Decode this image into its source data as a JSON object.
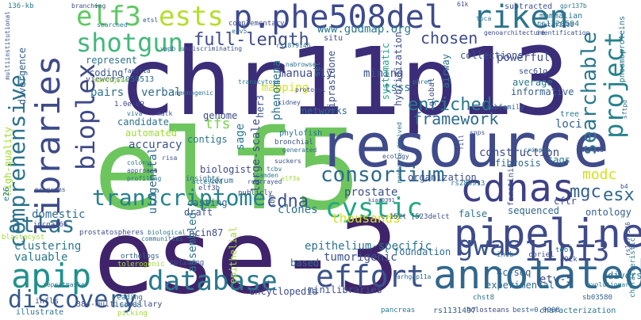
{
  "words": {
    "chr11p13": "chr11p13",
    "elf5": "elf5",
    "ese3": "ese-3",
    "resource": "resource",
    "phe508del": "p.phe508del",
    "libraries": "libraries",
    "pipeline": "pipeline",
    "annotated": "annotated",
    "cdnas": "cdnas",
    "bioplex": "bioplex",
    "riken": "riken",
    "comprehensive": "comprehensive",
    "elf3": "elf3",
    "ests": "ests",
    "shotgun": "shotgun",
    "database": "database",
    "effort": "effort",
    "transcriptome": "transcriptome",
    "cystic": "cystic",
    "consortium": "consortium",
    "project": "project",
    "searchable": "searchable",
    "enriched": "enriched",
    "gwas": "gwas",
    "p11p13": "11p13",
    "apip": "apip",
    "discovery": "discovery",
    "atlas": "atlas",
    "full_length": "full-length",
    "gudmap": "www.gudmap.org",
    "chosen": "chosen",
    "framework": "framework",
    "cdna": "cdna",
    "esx": "esx",
    "mgc": "mgc",
    "modc": "modc",
    "epithelium_specific": "epithelium-specific",
    "tumorigenic": "tumorigenic",
    "etv5": "etv-5",
    "c4seq": "4c-seq",
    "encyclopedia": "encyclopedia",
    "foundation": "foundation",
    "clustering": "clustering",
    "thousands": "thousands",
    "prostate": "prostate",
    "construction": "construction",
    "sage": "sage",
    "large_scale": "large-scale",
    "tfs": "tfs",
    "accuracy": "accuracy",
    "candidate": "candidate",
    "automated": "automated",
    "biologist": "biologist",
    "mapping": "mapping",
    "verbal": "verbal",
    "pairs": "pairs",
    "manually": "manually",
    "mining": "mining",
    "tsss": "tsss",
    "average": "average",
    "informative": "informative",
    "powerful": "powerful",
    "ontology": "ontology",
    "diverse": "diverse",
    "sequenced": "sequenced",
    "false": "false",
    "cftr": "cftr",
    "domestic": "domestic",
    "valuable": "valuable",
    "casting": "casting",
    "draft": "draft",
    "assembled": "assembled",
    "ncin87": "ncin87",
    "clones": "clones",
    "experimental": "experimental",
    "based": "based",
    "minilibraries": "minilibraries",
    "illustrate": "illustrate",
    "infls": "infls",
    "multicapillary": "384-multicapillary",
    "epithelial": "epithelial",
    "rs1131497": "rs1131497",
    "characterization": "characterization",
    "holosteans": "holosteans",
    "pancreas": "pancreas",
    "sb03580": "sb03580",
    "genome": "genome",
    "contigs": "contigs",
    "loci": "loci",
    "tags": "tags",
    "airway": "airway",
    "global": "global",
    "set": "set",
    "systematic": "systematic",
    "hybridization": "hybridization",
    "ziprasidone": "ziprasidone",
    "her3": "her3",
    "networks": "networks",
    "collections": "collections",
    "represent": "represent",
    "coding": "coding",
    "rs1056513": "rs1056513",
    "viewed": "viewed",
    "divergence": "divergence",
    "high_quality": "high-quality",
    "e26": "e26",
    "rs1120594": "rs1120594",
    "subtracted": "subtracted",
    "mammalian": "mammalian",
    "situ": "situ",
    "fibrosis": "fibrosis",
    "urogenital": "urogenital",
    "tree": "tree",
    "sec61g": "sec61g",
    "pneumoproteins": "pneumoproteins",
    "phylofish": "phylofish",
    "phenomena": "phenomena",
    "organization": "organization",
    "rs286913": "rs286913",
    "characteristic": "characteristic",
    "kb": "136-kb",
    "branching": "branching",
    "complementary": "complementary",
    "corum": "corum",
    "rs1070546": "rs1070546",
    "best": "best=0.0008",
    "elf3b": "elf3b",
    "chst8": "chst8",
    "c15": "c.152t [523delct",
    "rs1879146": "rs1879146",
    "atlas_small": "sb0",
    "tool": "tool",
    "coriel": "coriel",
    "inib": "inib",
    "publicly": "publicly",
    "insights": "insights",
    "bronchial": "bronchial",
    "prostatospheres": "prostatospheres",
    "biological": "biological",
    "communities": "communities",
    "orthologs": "orthologs",
    "tolerogenic": "tolerogenic",
    "splicing": "splicing",
    "reading": "reading",
    "picking": "picking",
    "e26_7": "7.6e-08",
    "e09": "1.0e-09",
    "blastocyst": "blastocyst",
    "incgat66": "incgat66",
    "subfamily": "subfamily",
    "identification": "identification",
    "gataf1a06": "gataf1a06",
    "gpr137b": "gpr137b",
    "genoarchitecture": "genoarchitecture",
    "tbca": "tbca",
    "ecology": "ecology",
    "sftpd": "sftpd",
    "evolutionary": "evolutionary",
    "series": "series",
    "crispra": "crispra",
    "foretinib": "foretinib",
    "snps": "snps",
    "s2kb": "492k",
    "arhgap11a": "arhgap11a",
    "kiaa0391": "kiaa0391",
    "camden": "camden",
    "rearrayed": "rearrayed",
    "tcbv": "tcbv",
    "suckers": "suckers",
    "generated": "generated",
    "repeatmasker": "repeatmasker",
    "programs": "programs",
    "profiling": "profiling",
    "approach": "approach",
    "colony": "colony",
    "risa": "risa",
    "viva": "viva",
    "matk": "matk",
    "immunogenic": "immunogenic",
    "kidney": "kidney",
    "transcytose": "transcytose",
    "protocol": "protocol",
    "nabrowse": "nabrowse",
    "undiscriminating": "undiscriminating",
    "vapb": "vapb",
    "multigene": "multigene",
    "familia": "familia",
    "searched": "searched",
    "etsl": "etsl",
    "etv5b": "etv5",
    "kb61": "61k",
    "phred": "phred",
    "monocyte_derived": "monocyte-derived",
    "fill": "fill",
    "elf3a": "elf3a",
    "accessed": "accessed",
    "multiinstitutional": "multiinstitutional",
    "b4": "b4"
  }
}
